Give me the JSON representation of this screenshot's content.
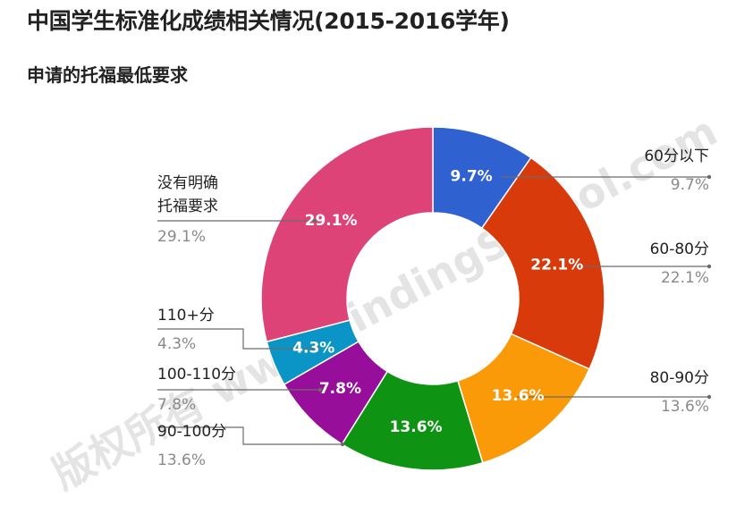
{
  "title": "中国学生标准化成绩相关情况(2015-2016学年)",
  "subtitle": "申请的托福最低要求",
  "watermark": "版权所有 www.FindingSchool.com",
  "chart_data": {
    "type": "pie",
    "donut": true,
    "title": "申请的托福最低要求",
    "slices": [
      {
        "label": "60分以下",
        "value": 9.7,
        "display": "9.7%",
        "color": "#3061d1"
      },
      {
        "label": "60-80分",
        "value": 22.1,
        "display": "22.1%",
        "color": "#d93a0b"
      },
      {
        "label": "80-90分",
        "value": 13.6,
        "display": "13.6%",
        "color": "#fb9a08"
      },
      {
        "label": "90-100分",
        "value": 13.6,
        "display": "13.6%",
        "color": "#0e9412"
      },
      {
        "label": "100-110分",
        "value": 7.8,
        "display": "7.8%",
        "color": "#970e9a"
      },
      {
        "label": "110+分",
        "value": 4.3,
        "display": "4.3%",
        "color": "#0a95c6"
      },
      {
        "label": "没有明确托福要求",
        "label_lines": [
          "没有明确",
          "托福要求"
        ],
        "value": 29.1,
        "display": "29.1%",
        "color": "#de4377"
      }
    ]
  }
}
